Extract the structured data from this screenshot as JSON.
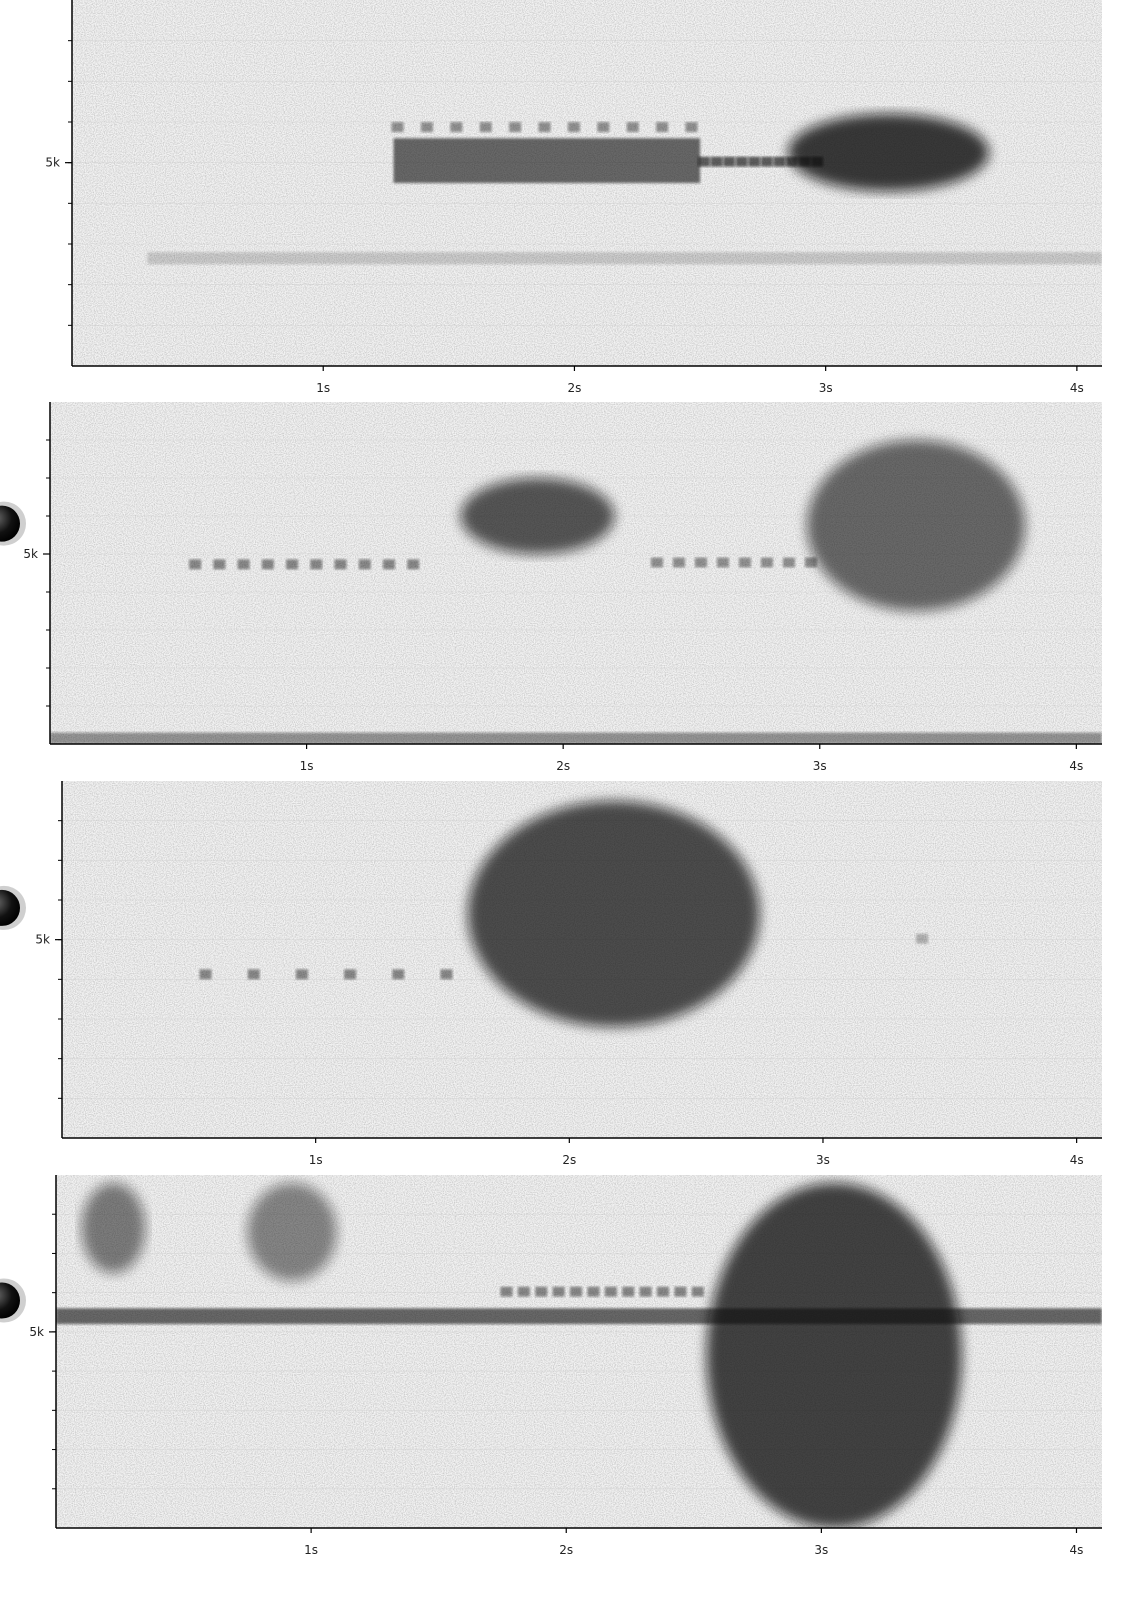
{
  "chart_data": [
    {
      "type": "heatmap",
      "title": "",
      "xlabel": "",
      "ylabel": "",
      "x_ticks": [
        "1s",
        "2s",
        "3s",
        "4s"
      ],
      "x_tick_values": [
        1,
        2,
        3,
        4
      ],
      "y_tick_labels": [
        "5k"
      ],
      "y_tick_values": [
        5000
      ],
      "xlim": [
        0,
        4.1
      ],
      "show_play_button": false,
      "events": [
        {
          "t0": 1.28,
          "t1": 2.45,
          "f_lo": 3200,
          "f_hi": 8500,
          "kind": "clicks",
          "n": 11,
          "intensity": 0.55
        },
        {
          "t0": 1.28,
          "t1": 2.5,
          "f_lo": 4500,
          "f_hi": 5600,
          "kind": "band",
          "intensity": 0.75
        },
        {
          "t0": 2.5,
          "t1": 2.95,
          "f_lo": 4400,
          "f_hi": 5600,
          "kind": "clicks",
          "n": 10,
          "intensity": 0.85
        },
        {
          "t0": 2.85,
          "t1": 3.65,
          "f_lo": 4300,
          "f_hi": 6200,
          "kind": "blob",
          "intensity": 0.95
        },
        {
          "t0": 0.3,
          "t1": 4.1,
          "f_lo": 2500,
          "f_hi": 2800,
          "kind": "hum",
          "intensity": 0.2
        }
      ]
    },
    {
      "type": "heatmap",
      "title": "",
      "xlabel": "",
      "ylabel": "",
      "x_ticks": [
        "1s",
        "2s",
        "3s",
        "4s"
      ],
      "x_tick_values": [
        1,
        2,
        3,
        4
      ],
      "y_tick_labels": [
        "5k"
      ],
      "y_tick_values": [
        5000
      ],
      "xlim": [
        0,
        4.1
      ],
      "show_play_button": true,
      "events": [
        {
          "t0": 0.55,
          "t1": 1.4,
          "f_lo": 3200,
          "f_hi": 6200,
          "kind": "clicks",
          "n": 10,
          "intensity": 0.6
        },
        {
          "t0": 1.6,
          "t1": 2.2,
          "f_lo": 5000,
          "f_hi": 7000,
          "kind": "blob",
          "intensity": 0.8
        },
        {
          "t0": 2.35,
          "t1": 2.95,
          "f_lo": 3000,
          "f_hi": 6500,
          "kind": "clicks",
          "n": 8,
          "intensity": 0.55
        },
        {
          "t0": 2.95,
          "t1": 3.8,
          "f_lo": 3500,
          "f_hi": 8000,
          "kind": "blob",
          "intensity": 0.7
        },
        {
          "t0": 0.0,
          "t1": 4.1,
          "f_lo": 0,
          "f_hi": 300,
          "kind": "hum",
          "intensity": 0.5
        }
      ]
    },
    {
      "type": "heatmap",
      "title": "",
      "xlabel": "",
      "ylabel": "",
      "x_ticks": [
        "1s",
        "2s",
        "3s",
        "4s"
      ],
      "x_tick_values": [
        1,
        2,
        3,
        4
      ],
      "y_tick_labels": [
        "5k"
      ],
      "y_tick_values": [
        5000
      ],
      "xlim": [
        0,
        4.1
      ],
      "show_play_button": true,
      "events": [
        {
          "t0": 0.55,
          "t1": 1.5,
          "f_lo": 2600,
          "f_hi": 5600,
          "kind": "clicks",
          "n": 6,
          "intensity": 0.6
        },
        {
          "t0": 1.6,
          "t1": 2.75,
          "f_lo": 2800,
          "f_hi": 8500,
          "kind": "blob",
          "intensity": 0.85
        },
        {
          "t0": 3.35,
          "t1": 3.4,
          "f_lo": 4000,
          "f_hi": 6000,
          "kind": "clicks",
          "n": 1,
          "intensity": 0.35
        }
      ]
    },
    {
      "type": "heatmap",
      "title": "",
      "xlabel": "",
      "ylabel": "",
      "x_ticks": [
        "1s",
        "2s",
        "3s",
        "4s"
      ],
      "x_tick_values": [
        1,
        2,
        3,
        4
      ],
      "y_tick_labels": [
        "5k"
      ],
      "y_tick_values": [
        5000
      ],
      "xlim": [
        0,
        4.1
      ],
      "show_play_button": true,
      "events": [
        {
          "t0": 0.0,
          "t1": 4.1,
          "f_lo": 5200,
          "f_hi": 5600,
          "kind": "band",
          "intensity": 0.75
        },
        {
          "t0": 0.1,
          "t1": 0.35,
          "f_lo": 6500,
          "f_hi": 8800,
          "kind": "blob",
          "intensity": 0.6
        },
        {
          "t0": 0.75,
          "t1": 1.1,
          "f_lo": 6300,
          "f_hi": 8800,
          "kind": "blob",
          "intensity": 0.55
        },
        {
          "t0": 1.75,
          "t1": 2.5,
          "f_lo": 3200,
          "f_hi": 8800,
          "kind": "clicks",
          "n": 12,
          "intensity": 0.6
        },
        {
          "t0": 2.55,
          "t1": 3.55,
          "f_lo": 0,
          "f_hi": 8800,
          "kind": "blob",
          "intensity": 0.9
        }
      ]
    }
  ]
}
